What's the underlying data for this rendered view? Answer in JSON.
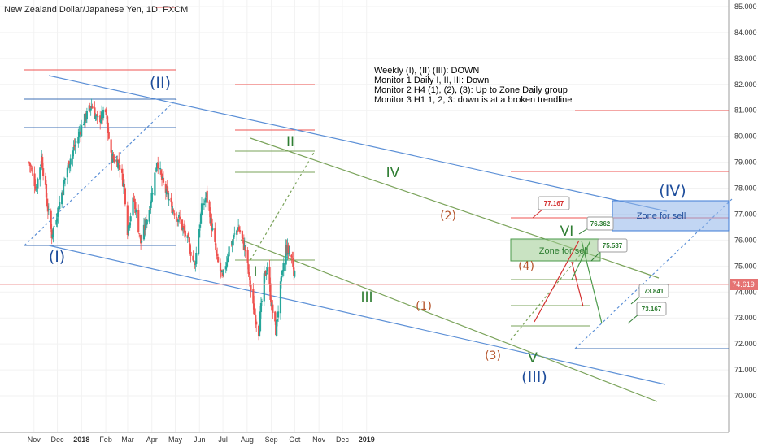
{
  "header": {
    "title": "New Zealand Dollar/Japanese Yen, 1D, FXCM"
  },
  "notes": [
    "Weekly (I), (II) (III): DOWN",
    "Monitor 1 Daily I, II, III: Down",
    "Monitor 2 H4 (1), (2), (3): Up to Zone Daily group",
    "Monitor 3 H1 1, 2, 3: down is at a broken trendline"
  ],
  "colors": {
    "bull": "#26a69a",
    "bear": "#ef5350",
    "blue_line": "#5b8fd6",
    "green_line": "#7aa35a",
    "red_line": "#e57373",
    "price_tag": "#e57373"
  },
  "chart_data": {
    "type": "candlestick",
    "title": "New Zealand Dollar/Japanese Yen, 1D, FXCM",
    "y_axis": {
      "range": [
        69.5,
        85.0
      ],
      "ticks": [
        "70.000",
        "71.000",
        "72.000",
        "73.000",
        "74.000",
        "75.000",
        "76.000",
        "77.000",
        "78.000",
        "79.000",
        "80.000",
        "81.000",
        "82.000",
        "83.000",
        "84.000",
        "85.000"
      ]
    },
    "x_axis": {
      "ticks": [
        "Nov",
        "Dec",
        "2018",
        "Feb",
        "Mar",
        "Apr",
        "May",
        "Jun",
        "Jul",
        "Aug",
        "Sep",
        "Oct",
        "Nov",
        "Dec",
        "2019"
      ]
    },
    "last_price": "74.619",
    "price_path": [
      {
        "date": "2017-10-30",
        "close": 79.0
      },
      {
        "date": "2017-11-08",
        "close": 78.0
      },
      {
        "date": "2017-11-15",
        "close": 79.2
      },
      {
        "date": "2017-11-22",
        "close": 77.4
      },
      {
        "date": "2017-11-28",
        "close": 76.2
      },
      {
        "date": "2017-12-07",
        "close": 77.3
      },
      {
        "date": "2017-12-18",
        "close": 78.8
      },
      {
        "date": "2017-12-27",
        "close": 79.6
      },
      {
        "date": "2018-01-08",
        "close": 80.6
      },
      {
        "date": "2018-01-18",
        "close": 81.2
      },
      {
        "date": "2018-01-25",
        "close": 80.6
      },
      {
        "date": "2018-02-05",
        "close": 80.9
      },
      {
        "date": "2018-02-12",
        "close": 79.2
      },
      {
        "date": "2018-02-22",
        "close": 79.0
      },
      {
        "date": "2018-03-01",
        "close": 78.0
      },
      {
        "date": "2018-03-05",
        "close": 76.4
      },
      {
        "date": "2018-03-13",
        "close": 77.6
      },
      {
        "date": "2018-03-22",
        "close": 75.9
      },
      {
        "date": "2018-04-02",
        "close": 77.2
      },
      {
        "date": "2018-04-12",
        "close": 79.1
      },
      {
        "date": "2018-04-18",
        "close": 78.3
      },
      {
        "date": "2018-04-30",
        "close": 77.3
      },
      {
        "date": "2018-05-10",
        "close": 76.8
      },
      {
        "date": "2018-05-22",
        "close": 75.9
      },
      {
        "date": "2018-05-30",
        "close": 75.0
      },
      {
        "date": "2018-06-08",
        "close": 77.2
      },
      {
        "date": "2018-06-14",
        "close": 77.7
      },
      {
        "date": "2018-06-20",
        "close": 76.7
      },
      {
        "date": "2018-06-28",
        "close": 75.2
      },
      {
        "date": "2018-07-05",
        "close": 74.5
      },
      {
        "date": "2018-07-13",
        "close": 75.7
      },
      {
        "date": "2018-07-25",
        "close": 76.5
      },
      {
        "date": "2018-08-03",
        "close": 75.6
      },
      {
        "date": "2018-08-13",
        "close": 73.4
      },
      {
        "date": "2018-08-20",
        "close": 72.5
      },
      {
        "date": "2018-08-27",
        "close": 74.5
      },
      {
        "date": "2018-08-31",
        "close": 75.0
      },
      {
        "date": "2018-09-05",
        "close": 73.6
      },
      {
        "date": "2018-09-11",
        "close": 72.5
      },
      {
        "date": "2018-09-17",
        "close": 74.2
      },
      {
        "date": "2018-09-24",
        "close": 75.7
      },
      {
        "date": "2018-10-02",
        "close": 75.3
      },
      {
        "date": "2018-10-05",
        "close": 74.6
      }
    ],
    "wave_labels": [
      {
        "text": "(I)",
        "style": "blue"
      },
      {
        "text": "(II)",
        "style": "blue"
      },
      {
        "text": "(III)",
        "style": "blue"
      },
      {
        "text": "(IV)",
        "style": "blue"
      },
      {
        "text": "I",
        "style": "green"
      },
      {
        "text": "II",
        "style": "green"
      },
      {
        "text": "III",
        "style": "green"
      },
      {
        "text": "IV",
        "style": "green"
      },
      {
        "text": "V",
        "style": "green"
      },
      {
        "text": "VI",
        "style": "green"
      },
      {
        "text": "(1)",
        "style": "brown"
      },
      {
        "text": "(2)",
        "style": "brown"
      },
      {
        "text": "(3)",
        "style": "brown"
      },
      {
        "text": "(4)",
        "style": "brown"
      }
    ],
    "zones": [
      {
        "label": "Zone for sell",
        "color": "#3d7bd6",
        "range": [
          76.6,
          77.8
        ]
      },
      {
        "label": "Zone for sell",
        "color": "#4a9a4a",
        "range": [
          75.6,
          76.3
        ]
      }
    ],
    "callouts": [
      {
        "text": "77.167",
        "color": "#d32f2f",
        "value": 77.167
      },
      {
        "text": "76.362",
        "color": "#2e7d32",
        "value": 76.362
      },
      {
        "text": "75.537",
        "color": "#2e7d32",
        "value": 75.537
      },
      {
        "text": "73.841",
        "color": "#2e7d32",
        "value": 73.841
      },
      {
        "text": "73.167",
        "color": "#2e7d32",
        "value": 73.167
      }
    ]
  }
}
